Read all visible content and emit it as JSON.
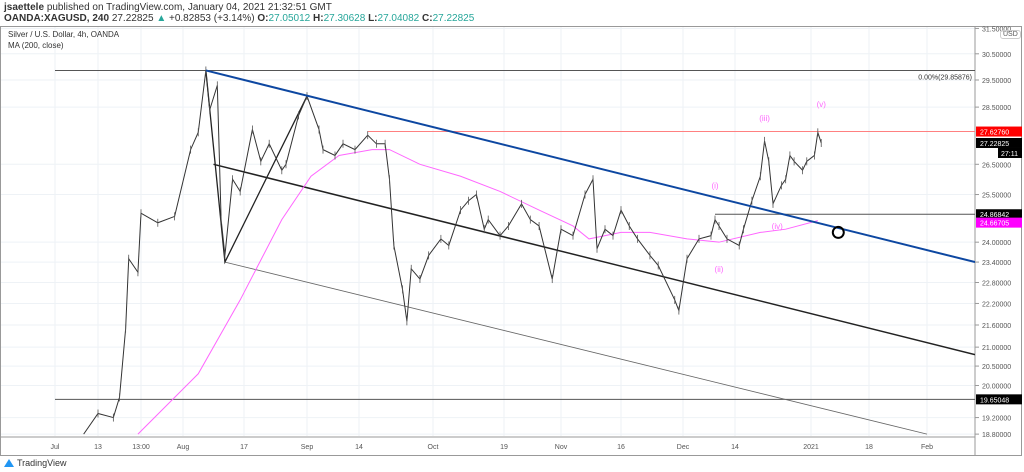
{
  "header": {
    "publisher": "jsaettele",
    "published_text": "published on TradingView.com, January 04, 2021 21:32:51 GMT",
    "symbol": "OANDA:XAGUSD, 240",
    "last": "27.22825",
    "change": "+0.82853 (+3.14%)",
    "o_label": "O:",
    "o": "27.05012",
    "h_label": "H:",
    "h": "27.30628",
    "l_label": "L:",
    "l": "27.04082",
    "c_label": "C:",
    "c": "27.22825"
  },
  "legend": {
    "title": "Silver / U.S. Dollar, 4h, OANDA",
    "ma": "MA (200, close)"
  },
  "currency": "USD",
  "footer": {
    "brand": "TradingView"
  },
  "colors": {
    "up": "#26a69a",
    "trend_blue": "#0d47a1",
    "ma": "#ff66ff",
    "resistance": "#ff8080",
    "price_label_red": "#ff0000",
    "ma_label": "#ff00ff"
  },
  "chart_data": {
    "type": "line",
    "price_scale": "log",
    "ylim": [
      18.8,
      31.5
    ],
    "xlim": [
      "2020-07-01",
      "2021-02-12"
    ],
    "y_ticks": [
      "31.50000",
      "30.50000",
      "29.50000",
      "28.50000",
      "26.50000",
      "25.50000",
      "24.00000",
      "23.40000",
      "22.80000",
      "22.20000",
      "21.60000",
      "21.00000",
      "20.50000",
      "20.00000",
      "19.20000",
      "18.80000"
    ],
    "x_ticks": [
      "Jul",
      "13",
      "13:00",
      "Aug",
      "17",
      "Sep",
      "14",
      "Oct",
      "19",
      "Nov",
      "16",
      "Dec",
      "14",
      "2021",
      "18",
      "Feb"
    ],
    "price": [
      [
        "2020-07-09",
        18.8
      ],
      [
        "2020-07-13",
        19.3
      ],
      [
        "2020-07-18",
        19.2
      ],
      [
        "2020-07-20",
        19.7
      ],
      [
        "2020-07-22",
        21.5
      ],
      [
        "2020-07-23",
        23.5
      ],
      [
        "2020-07-26",
        23.1
      ],
      [
        "2020-07-27",
        24.9
      ],
      [
        "2020-07-29",
        24.6
      ],
      [
        "2020-07-31",
        24.8
      ],
      [
        "2020-08-03",
        27.0
      ],
      [
        "2020-08-05",
        27.6
      ],
      [
        "2020-08-07",
        29.86
      ],
      [
        "2020-08-08",
        28.4
      ],
      [
        "2020-08-10",
        29.3
      ],
      [
        "2020-08-11",
        24.7
      ],
      [
        "2020-08-12",
        23.6
      ],
      [
        "2020-08-14",
        26.0
      ],
      [
        "2020-08-16",
        25.6
      ],
      [
        "2020-08-19",
        27.7
      ],
      [
        "2020-08-21",
        26.6
      ],
      [
        "2020-08-23",
        27.2
      ],
      [
        "2020-08-26",
        26.3
      ],
      [
        "2020-08-27",
        26.5
      ],
      [
        "2020-08-30",
        28.2
      ],
      [
        "2020-09-01",
        28.9
      ],
      [
        "2020-09-04",
        27.7
      ],
      [
        "2020-09-05",
        27.0
      ],
      [
        "2020-09-08",
        26.8
      ],
      [
        "2020-09-10",
        27.2
      ],
      [
        "2020-09-13",
        27.0
      ],
      [
        "2020-09-16",
        27.5
      ],
      [
        "2020-09-18",
        27.2
      ],
      [
        "2020-09-20",
        27.2
      ],
      [
        "2020-09-21",
        26.0
      ],
      [
        "2020-09-22",
        23.9
      ],
      [
        "2020-09-24",
        22.6
      ],
      [
        "2020-09-25",
        21.7
      ],
      [
        "2020-09-26",
        23.2
      ],
      [
        "2020-09-28",
        22.9
      ],
      [
        "2020-09-30",
        23.6
      ],
      [
        "2020-10-03",
        24.1
      ],
      [
        "2020-10-05",
        23.9
      ],
      [
        "2020-10-08",
        25.0
      ],
      [
        "2020-10-10",
        25.3
      ],
      [
        "2020-10-12",
        25.5
      ],
      [
        "2020-10-14",
        24.4
      ],
      [
        "2020-10-15",
        24.7
      ],
      [
        "2020-10-18",
        24.2
      ],
      [
        "2020-10-20",
        24.5
      ],
      [
        "2020-10-23",
        25.2
      ],
      [
        "2020-10-25",
        24.7
      ],
      [
        "2020-10-27",
        24.5
      ],
      [
        "2020-10-30",
        22.9
      ],
      [
        "2020-11-01",
        24.4
      ],
      [
        "2020-11-04",
        24.2
      ],
      [
        "2020-11-07",
        25.5
      ],
      [
        "2020-11-09",
        26.0
      ],
      [
        "2020-11-10",
        23.8
      ],
      [
        "2020-11-12",
        24.4
      ],
      [
        "2020-11-14",
        24.2
      ],
      [
        "2020-11-16",
        25.0
      ],
      [
        "2020-11-18",
        24.5
      ],
      [
        "2020-11-20",
        24.1
      ],
      [
        "2020-11-23",
        23.6
      ],
      [
        "2020-11-25",
        23.3
      ],
      [
        "2020-11-29",
        22.3
      ],
      [
        "2020-11-30",
        22.0
      ],
      [
        "2020-12-02",
        23.5
      ],
      [
        "2020-12-05",
        24.1
      ],
      [
        "2020-12-08",
        24.2
      ],
      [
        "2020-12-09",
        24.7
      ],
      [
        "2020-12-10",
        24.5
      ],
      [
        "2020-12-12",
        24.1
      ],
      [
        "2020-12-15",
        23.9
      ],
      [
        "2020-12-16",
        24.4
      ],
      [
        "2020-12-18",
        25.3
      ],
      [
        "2020-12-20",
        26.1
      ],
      [
        "2020-12-21",
        27.3
      ],
      [
        "2020-12-22",
        26.6
      ],
      [
        "2020-12-23",
        25.2
      ],
      [
        "2020-12-25",
        25.8
      ],
      [
        "2020-12-26",
        26.0
      ],
      [
        "2020-12-27",
        26.8
      ],
      [
        "2020-12-28",
        26.6
      ],
      [
        "2020-12-30",
        26.3
      ],
      [
        "2020-12-31",
        26.6
      ],
      [
        "2021-01-02",
        26.8
      ],
      [
        "2021-01-03",
        27.6
      ],
      [
        "2021-01-04",
        27.22825
      ]
    ],
    "ma200": [
      [
        "2020-07-26",
        18.8
      ],
      [
        "2020-08-05",
        20.3
      ],
      [
        "2020-08-16",
        22.3
      ],
      [
        "2020-08-26",
        24.7
      ],
      [
        "2020-09-02",
        26.1
      ],
      [
        "2020-09-09",
        26.8
      ],
      [
        "2020-09-17",
        27.0
      ],
      [
        "2020-09-21",
        27.0
      ],
      [
        "2020-09-28",
        26.5
      ],
      [
        "2020-10-08",
        26.1
      ],
      [
        "2020-10-18",
        25.6
      ],
      [
        "2020-10-27",
        25.0
      ],
      [
        "2020-11-04",
        24.5
      ],
      [
        "2020-11-08",
        24.1
      ],
      [
        "2020-11-16",
        24.3
      ],
      [
        "2020-11-23",
        24.3
      ],
      [
        "2020-12-02",
        24.1
      ],
      [
        "2020-12-10",
        24.0
      ],
      [
        "2020-12-20",
        24.3
      ],
      [
        "2020-12-26",
        24.4
      ],
      [
        "2021-01-03",
        24.66705
      ]
    ],
    "trendlines": {
      "upper_blue": [
        [
          "2020-08-07",
          29.86
        ],
        [
          "2021-02-12",
          23.4
        ]
      ],
      "channel_mid": [
        [
          "2020-08-09",
          26.5
        ],
        [
          "2021-02-12",
          20.8
        ]
      ],
      "channel_low": [
        [
          "2020-08-12",
          23.4
        ],
        [
          "2021-02-01",
          18.8
        ]
      ],
      "zigzag": [
        [
          "2020-08-07",
          29.86
        ],
        [
          "2020-08-12",
          23.4
        ],
        [
          "2020-09-01",
          28.9
        ]
      ]
    },
    "levels": [
      {
        "price": 29.85876,
        "from": "2020-07-01",
        "label": "0.00%(29.85876)"
      },
      {
        "price": 27.6276,
        "from": "2020-09-16",
        "label": "27.62760",
        "kind": "resistance"
      },
      {
        "price": 24.86842,
        "from": "2020-12-09",
        "label": "24.86842"
      },
      {
        "price": 19.65048,
        "from": "2020-07-01",
        "label": "19.65048"
      }
    ],
    "axis_labels": {
      "last": "27.22825",
      "countdown": "27:11",
      "ma_value": "24.66705"
    },
    "wave_labels": [
      {
        "text": "(i)",
        "date": "2020-12-09",
        "price": 25.7
      },
      {
        "text": "(ii)",
        "date": "2020-12-10",
        "price": 23.1
      },
      {
        "text": "(iii)",
        "date": "2020-12-21",
        "price": 28.0
      },
      {
        "text": "(iv)",
        "date": "2020-12-24",
        "price": 24.4
      },
      {
        "text": "(v)",
        "date": "2021-01-04",
        "price": 28.5
      }
    ],
    "target_circle": {
      "date": "2021-01-09",
      "price": 24.3
    }
  }
}
